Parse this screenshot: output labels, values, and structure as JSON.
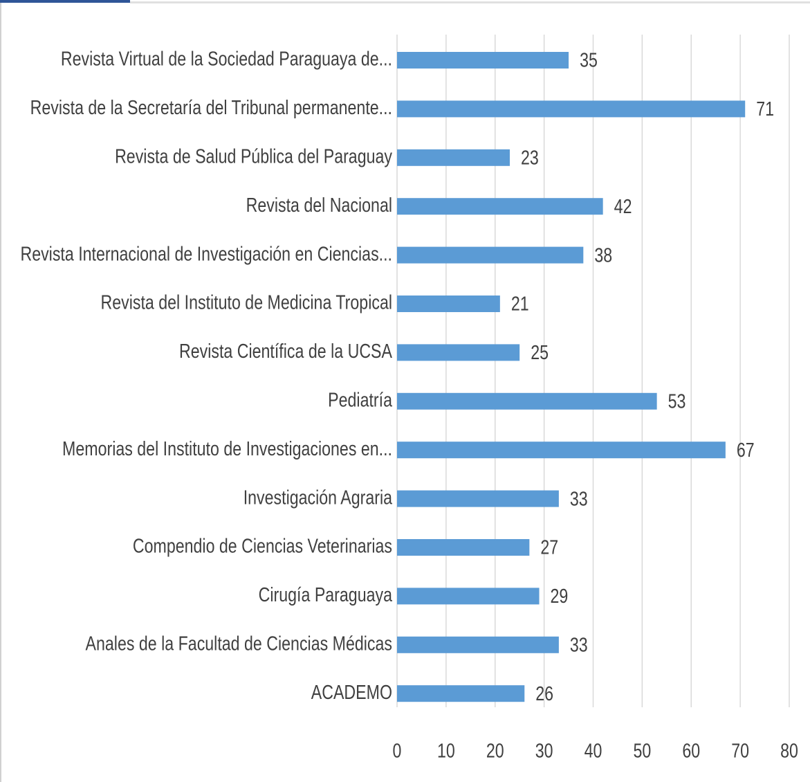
{
  "chart_data": {
    "type": "barh",
    "categories": [
      "Revista Virtual de la Sociedad Paraguaya de...",
      "Revista de la Secretaría del Tribunal permanente...",
      "Revista de Salud Pública del Paraguay",
      "Revista del Nacional",
      "Revista Internacional de Investigación en Ciencias...",
      "Revista del Instituto de Medicina Tropical",
      "Revista Científica de la UCSA",
      "Pediatría",
      "Memorias del Instituto de Investigaciones en...",
      "Investigación Agraria",
      "Compendio de Ciencias Veterinarias",
      "Cirugía Paraguaya",
      "Anales de la Facultad de Ciencias Médicas",
      "ACADEMO"
    ],
    "values": [
      35,
      71,
      23,
      42,
      38,
      21,
      25,
      53,
      67,
      33,
      27,
      29,
      33,
      26
    ],
    "color": "#5b9bd5",
    "xlim": [
      0,
      80
    ],
    "xticks": [
      0,
      10,
      20,
      30,
      40,
      50,
      60,
      70,
      80
    ],
    "grid": true
  }
}
